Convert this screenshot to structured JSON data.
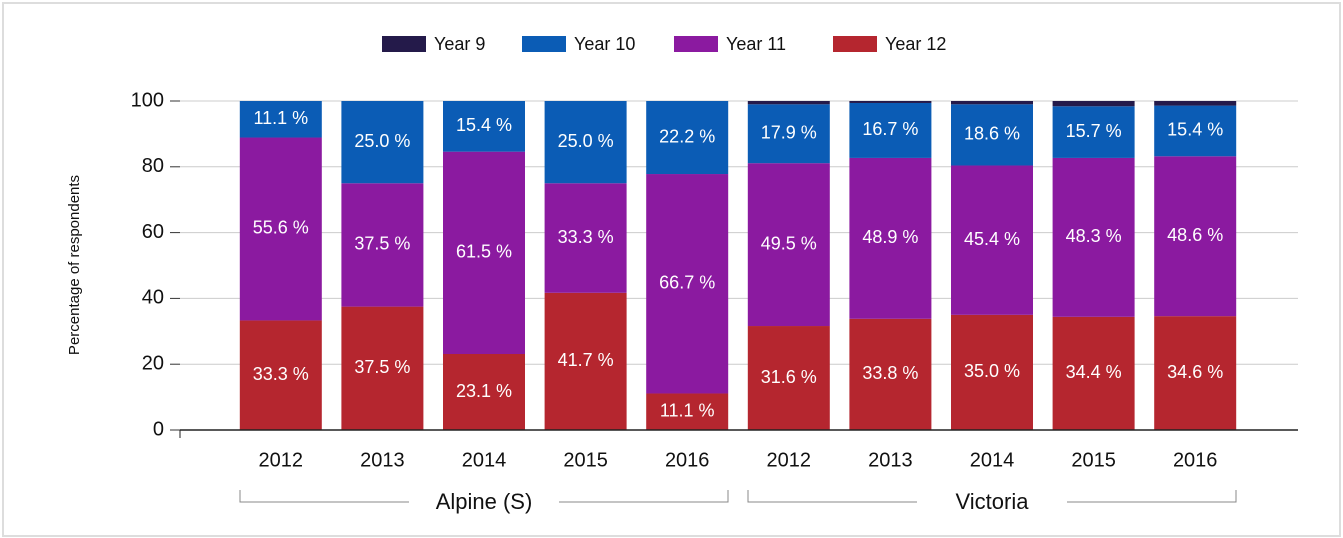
{
  "chart_data": {
    "type": "stacked_bar",
    "y_label": "Percentage of respondents",
    "groups": [
      {
        "name": "Alpine (S)",
        "categories": [
          "2012",
          "2013",
          "2014",
          "2015",
          "2016"
        ]
      },
      {
        "name": "Victoria",
        "categories": [
          "2012",
          "2013",
          "2014",
          "2015",
          "2016"
        ]
      }
    ],
    "series": [
      {
        "name": "Year 9",
        "color": "#241a4a",
        "values": [
          0,
          0,
          0,
          0,
          0,
          1.0,
          0.6,
          1.0,
          1.6,
          1.4
        ]
      },
      {
        "name": "Year 10",
        "color": "#0b5cb5",
        "values": [
          11.1,
          25.0,
          15.4,
          25.0,
          22.2,
          17.9,
          16.7,
          18.6,
          15.7,
          15.4
        ],
        "value_labels": [
          "11.1 %",
          "25.0 %",
          "15.4 %",
          "25.0 %",
          "22.2 %",
          "17.9 %",
          "16.7 %",
          "18.6 %",
          "15.7 %",
          "15.4 %"
        ]
      },
      {
        "name": "Year 11",
        "color": "#8b1aa0",
        "values": [
          55.6,
          37.5,
          61.5,
          33.3,
          66.7,
          49.5,
          48.9,
          45.4,
          48.3,
          48.6
        ],
        "value_labels": [
          "55.6 %",
          "37.5 %",
          "61.5 %",
          "33.3 %",
          "66.7 %",
          "49.5 %",
          "48.9 %",
          "45.4 %",
          "48.3 %",
          "48.6 %"
        ]
      },
      {
        "name": "Year 12",
        "color": "#b5262f",
        "values": [
          33.3,
          37.5,
          23.1,
          41.7,
          11.1,
          31.6,
          33.8,
          35.0,
          34.4,
          34.6
        ],
        "value_labels": [
          "33.3 %",
          "37.5 %",
          "23.1 %",
          "41.7 %",
          "11.1 %",
          "31.6 %",
          "33.8 %",
          "35.0 %",
          "34.4 %",
          "34.6 %"
        ]
      }
    ],
    "ylim": [
      0,
      100
    ],
    "yticks": [
      0,
      20,
      40,
      60,
      80,
      100
    ],
    "grid": true,
    "legend": "top"
  }
}
